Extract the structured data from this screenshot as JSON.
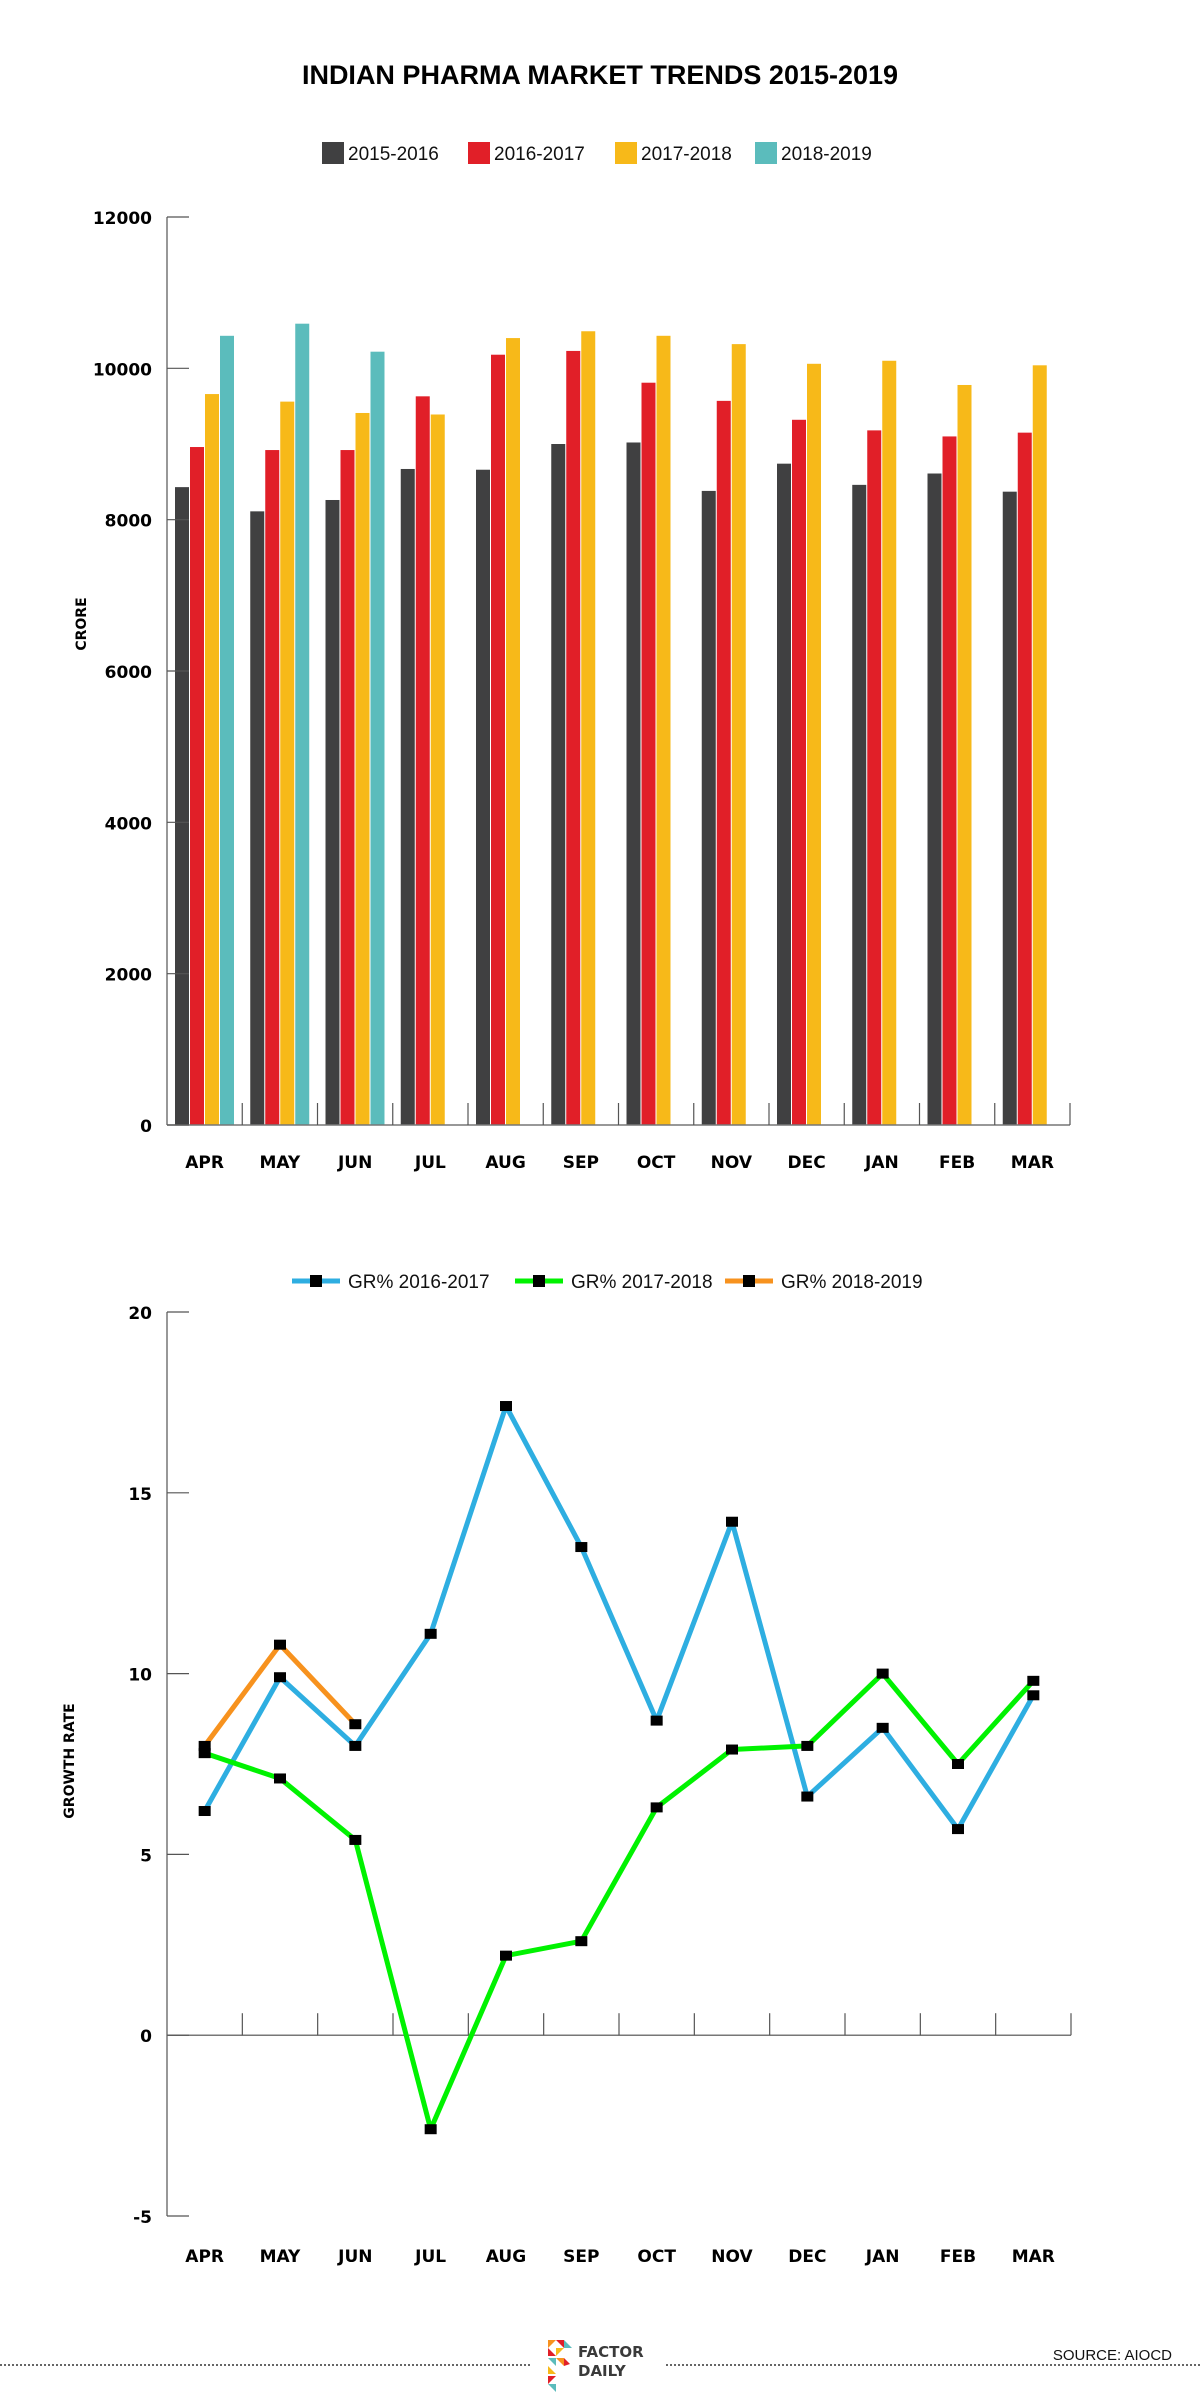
{
  "title": "INDIAN PHARMA MARKET TRENDS 2015-2019",
  "chart_data": [
    {
      "type": "bar",
      "ylabel": "CRORE",
      "xlabel": "",
      "ylim": [
        0,
        12000
      ],
      "yticks": [
        "0",
        "2000",
        "4000",
        "6000",
        "8000",
        "10000",
        "12000"
      ],
      "grid": false,
      "legend_position": "top-center",
      "categories": [
        "APR",
        "MAY",
        "JUN",
        "JUL",
        "AUG",
        "SEP",
        "OCT",
        "NOV",
        "DEC",
        "JAN",
        "FEB",
        "MAR"
      ],
      "series": [
        {
          "name": "2015-2016",
          "color": "#404041",
          "values": [
            8430,
            8110,
            8260,
            8670,
            8660,
            9000,
            9020,
            8380,
            8740,
            8460,
            8610,
            8370
          ]
        },
        {
          "name": "2016-2017",
          "color": "#e11f28",
          "values": [
            8960,
            8920,
            8920,
            9630,
            10180,
            10230,
            9810,
            9570,
            9320,
            9180,
            9100,
            9150
          ]
        },
        {
          "name": "2017-2018",
          "color": "#f7b919",
          "values": [
            9660,
            9560,
            9410,
            9390,
            10400,
            10490,
            10430,
            10320,
            10060,
            10100,
            9780,
            10040
          ]
        },
        {
          "name": "2018-2019",
          "color": "#5bbcbc",
          "values": [
            10430,
            10590,
            10220,
            null,
            null,
            null,
            null,
            null,
            null,
            null,
            null,
            null
          ]
        }
      ]
    },
    {
      "type": "line",
      "ylabel": "GROWTH RATE",
      "xlabel": "",
      "ylim": [
        -5,
        20
      ],
      "yticks": [
        "-5",
        "0",
        "5",
        "10",
        "15",
        "20"
      ],
      "grid": false,
      "legend_position": "top-center",
      "categories": [
        "APR",
        "MAY",
        "JUN",
        "JUL",
        "AUG",
        "SEP",
        "OCT",
        "NOV",
        "DEC",
        "JAN",
        "FEB",
        "MAR"
      ],
      "series": [
        {
          "name": "GR% 2016-2017",
          "color": "#2eaee1",
          "values": [
            6.2,
            9.9,
            8.0,
            11.1,
            17.4,
            13.5,
            8.7,
            14.2,
            6.6,
            8.5,
            5.7,
            9.4
          ]
        },
        {
          "name": "GR% 2017-2018",
          "color": "#00f200",
          "values": [
            7.8,
            7.1,
            5.4,
            -2.6,
            2.2,
            2.6,
            6.3,
            7.9,
            8.0,
            10.0,
            7.5,
            9.8
          ]
        },
        {
          "name": "GR% 2018-2019",
          "color": "#f7921e",
          "values": [
            8.0,
            10.8,
            8.6,
            null,
            null,
            null,
            null,
            null,
            null,
            null,
            null,
            null
          ]
        }
      ]
    }
  ],
  "footer": {
    "logo_line1": "FACTOR",
    "logo_line2": "DAILY",
    "source": "SOURCE: AIOCD"
  }
}
